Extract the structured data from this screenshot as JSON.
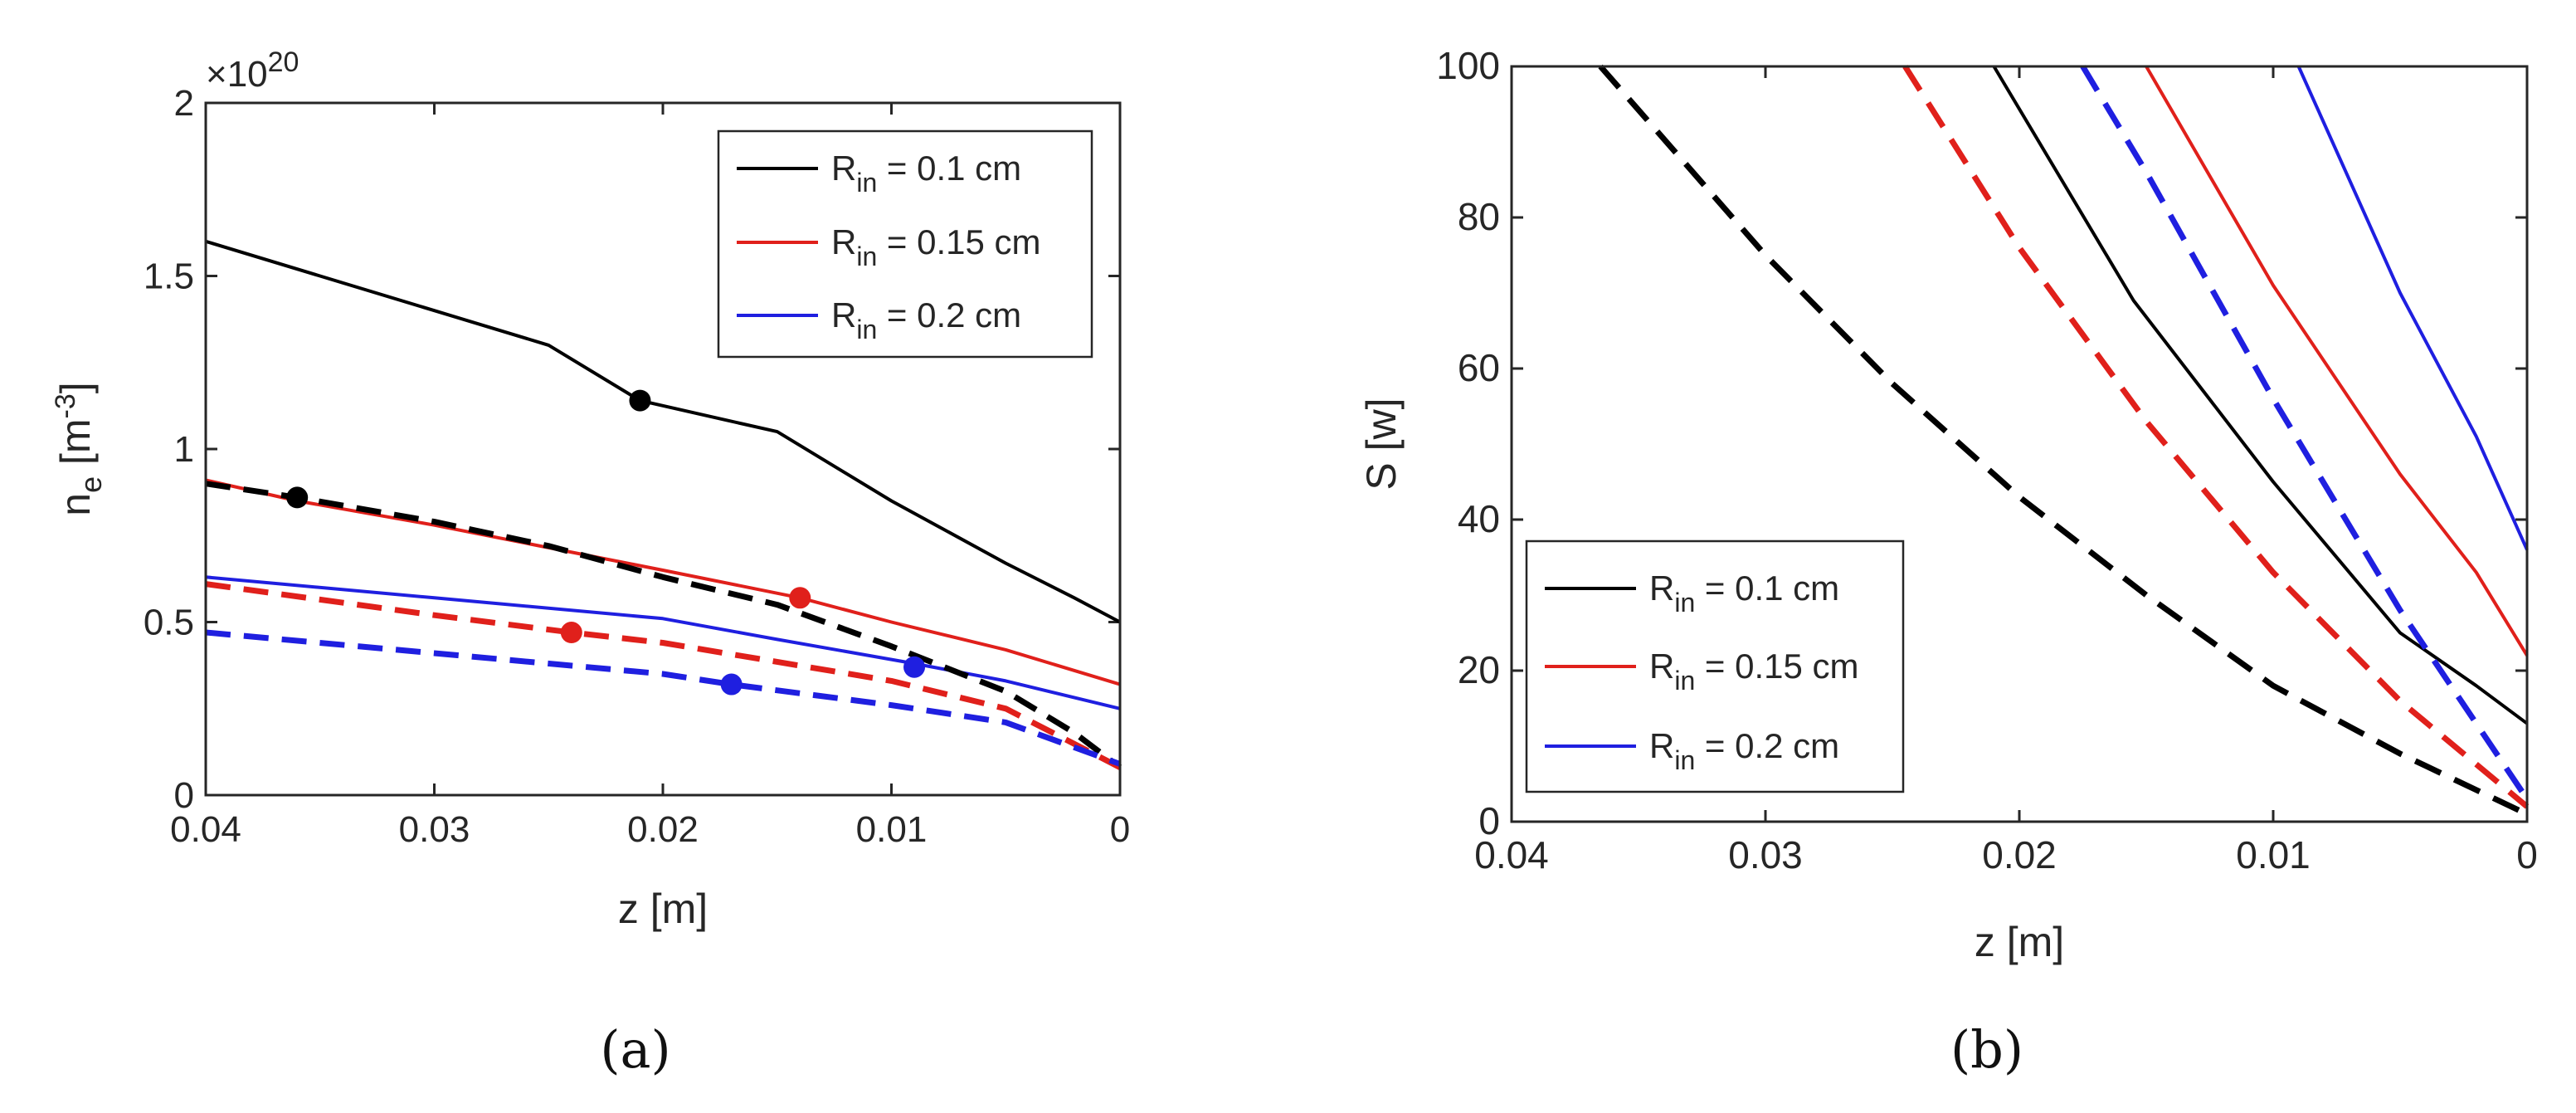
{
  "chart_data": [
    {
      "panel": "a",
      "panel_label": "(a)",
      "type": "line",
      "xlabel": "z [m]",
      "ylabel_main": "n",
      "ylabel_sub": "e",
      "ylabel_unit_pre": " [m",
      "ylabel_unit_sup": "-3",
      "ylabel_unit_post": "]",
      "y_exponent_prefix": "×10",
      "y_exponent_power": "20",
      "xlim": [
        0.04,
        0
      ],
      "ylim": [
        0,
        2
      ],
      "xticks": [
        0.04,
        0.03,
        0.02,
        0.01,
        0
      ],
      "xtick_labels": [
        "0.04",
        "0.03",
        "0.02",
        "0.01",
        "0"
      ],
      "yticks": [
        0,
        0.5,
        1,
        1.5,
        2
      ],
      "ytick_labels": [
        "0",
        "0.5",
        "1",
        "1.5",
        "2"
      ],
      "legend": {
        "location": "top-right",
        "entries": [
          {
            "prefix": "R",
            "sub": "in",
            "suffix": " = 0.1 cm",
            "color": "#000000"
          },
          {
            "prefix": "R",
            "sub": "in",
            "suffix": " = 0.15 cm",
            "color": "#e0201b"
          },
          {
            "prefix": "R",
            "sub": "in",
            "suffix": " = 0.2 cm",
            "color": "#1f1fe0"
          }
        ]
      },
      "series": [
        {
          "name": "R_in = 0.1 cm solid",
          "color": "#000000",
          "style": "solid",
          "x": [
            0.04,
            0.035,
            0.03,
            0.025,
            0.021,
            0.015,
            0.01,
            0.005,
            0.002,
            0
          ],
          "y": [
            1.6,
            1.5,
            1.4,
            1.3,
            1.14,
            1.05,
            0.85,
            0.67,
            0.57,
            0.5
          ]
        },
        {
          "name": "R_in = 0.15 cm solid",
          "color": "#e0201b",
          "style": "solid",
          "x": [
            0.04,
            0.036,
            0.03,
            0.02,
            0.014,
            0.01,
            0.005,
            0
          ],
          "y": [
            0.91,
            0.85,
            0.78,
            0.65,
            0.57,
            0.5,
            0.42,
            0.32
          ]
        },
        {
          "name": "R_in = 0.2 cm solid",
          "color": "#1f1fe0",
          "style": "solid",
          "x": [
            0.04,
            0.03,
            0.02,
            0.015,
            0.009,
            0.005,
            0
          ],
          "y": [
            0.63,
            0.57,
            0.51,
            0.45,
            0.38,
            0.33,
            0.25
          ]
        },
        {
          "name": "R_in = 0.1 cm dashed",
          "color": "#000000",
          "style": "dashed",
          "x": [
            0.04,
            0.036,
            0.03,
            0.025,
            0.02,
            0.015,
            0.01,
            0.005,
            0.002,
            0
          ],
          "y": [
            0.9,
            0.86,
            0.79,
            0.72,
            0.63,
            0.55,
            0.43,
            0.3,
            0.18,
            0.08
          ]
        },
        {
          "name": "R_in = 0.15 cm dashed",
          "color": "#e0201b",
          "style": "dashed",
          "x": [
            0.04,
            0.03,
            0.024,
            0.02,
            0.01,
            0.005,
            0
          ],
          "y": [
            0.61,
            0.52,
            0.47,
            0.44,
            0.33,
            0.25,
            0.08
          ]
        },
        {
          "name": "R_in = 0.2 cm dashed",
          "color": "#1f1fe0",
          "style": "dashed",
          "x": [
            0.04,
            0.03,
            0.02,
            0.017,
            0.01,
            0.005,
            0
          ],
          "y": [
            0.47,
            0.41,
            0.35,
            0.32,
            0.26,
            0.21,
            0.09
          ]
        }
      ],
      "markers": [
        {
          "x": 0.021,
          "y": 1.14,
          "color": "#000000"
        },
        {
          "x": 0.036,
          "y": 0.86,
          "color": "#000000"
        },
        {
          "x": 0.014,
          "y": 0.57,
          "color": "#e0201b"
        },
        {
          "x": 0.024,
          "y": 0.47,
          "color": "#e0201b"
        },
        {
          "x": 0.009,
          "y": 0.37,
          "color": "#1f1fe0"
        },
        {
          "x": 0.017,
          "y": 0.32,
          "color": "#1f1fe0"
        }
      ]
    },
    {
      "panel": "b",
      "panel_label": "(b)",
      "type": "line",
      "xlabel": "z [m]",
      "ylabel": "S [w]",
      "xlim": [
        0.04,
        0
      ],
      "ylim": [
        0,
        100
      ],
      "xticks": [
        0.04,
        0.03,
        0.02,
        0.01,
        0
      ],
      "xtick_labels": [
        "0.04",
        "0.03",
        "0.02",
        "0.01",
        "0"
      ],
      "yticks": [
        0,
        20,
        40,
        60,
        80,
        100
      ],
      "ytick_labels": [
        "0",
        "20",
        "40",
        "60",
        "80",
        "100"
      ],
      "legend": {
        "location": "bottom-left",
        "entries": [
          {
            "prefix": "R",
            "sub": "in",
            "suffix": " = 0.1 cm",
            "color": "#000000"
          },
          {
            "prefix": "R",
            "sub": "in",
            "suffix": " = 0.15 cm",
            "color": "#e0201b"
          },
          {
            "prefix": "R",
            "sub": "in",
            "suffix": " = 0.2 cm",
            "color": "#1f1fe0"
          }
        ]
      },
      "series": [
        {
          "name": "R_in = 0.1 cm solid",
          "color": "#000000",
          "style": "solid",
          "x": [
            0.021,
            0.0155,
            0.01,
            0.005,
            0.002,
            0
          ],
          "y": [
            100,
            69,
            45,
            25,
            18,
            13
          ]
        },
        {
          "name": "R_in = 0.15 cm solid",
          "color": "#e0201b",
          "style": "solid",
          "x": [
            0.015,
            0.01,
            0.005,
            0.002,
            0
          ],
          "y": [
            100,
            71,
            46,
            33,
            22
          ]
        },
        {
          "name": "R_in = 0.2 cm solid",
          "color": "#1f1fe0",
          "style": "solid",
          "x": [
            0.009,
            0.005,
            0.002,
            0
          ],
          "y": [
            100,
            70,
            51,
            36
          ]
        },
        {
          "name": "R_in = 0.1 cm dashed",
          "color": "#000000",
          "style": "dashed",
          "x": [
            0.0365,
            0.03,
            0.025,
            0.02,
            0.015,
            0.01,
            0.005,
            0
          ],
          "y": [
            100,
            75,
            58,
            43,
            30,
            18,
            9,
            1
          ]
        },
        {
          "name": "R_in = 0.15 cm dashed",
          "color": "#e0201b",
          "style": "dashed",
          "x": [
            0.0245,
            0.02,
            0.015,
            0.01,
            0.005,
            0
          ],
          "y": [
            100,
            76,
            53,
            33,
            16,
            2
          ]
        },
        {
          "name": "R_in = 0.2 cm dashed",
          "color": "#1f1fe0",
          "style": "dashed",
          "x": [
            0.0175,
            0.015,
            0.01,
            0.005,
            0
          ],
          "y": [
            100,
            86,
            56,
            28,
            3
          ]
        }
      ]
    }
  ]
}
